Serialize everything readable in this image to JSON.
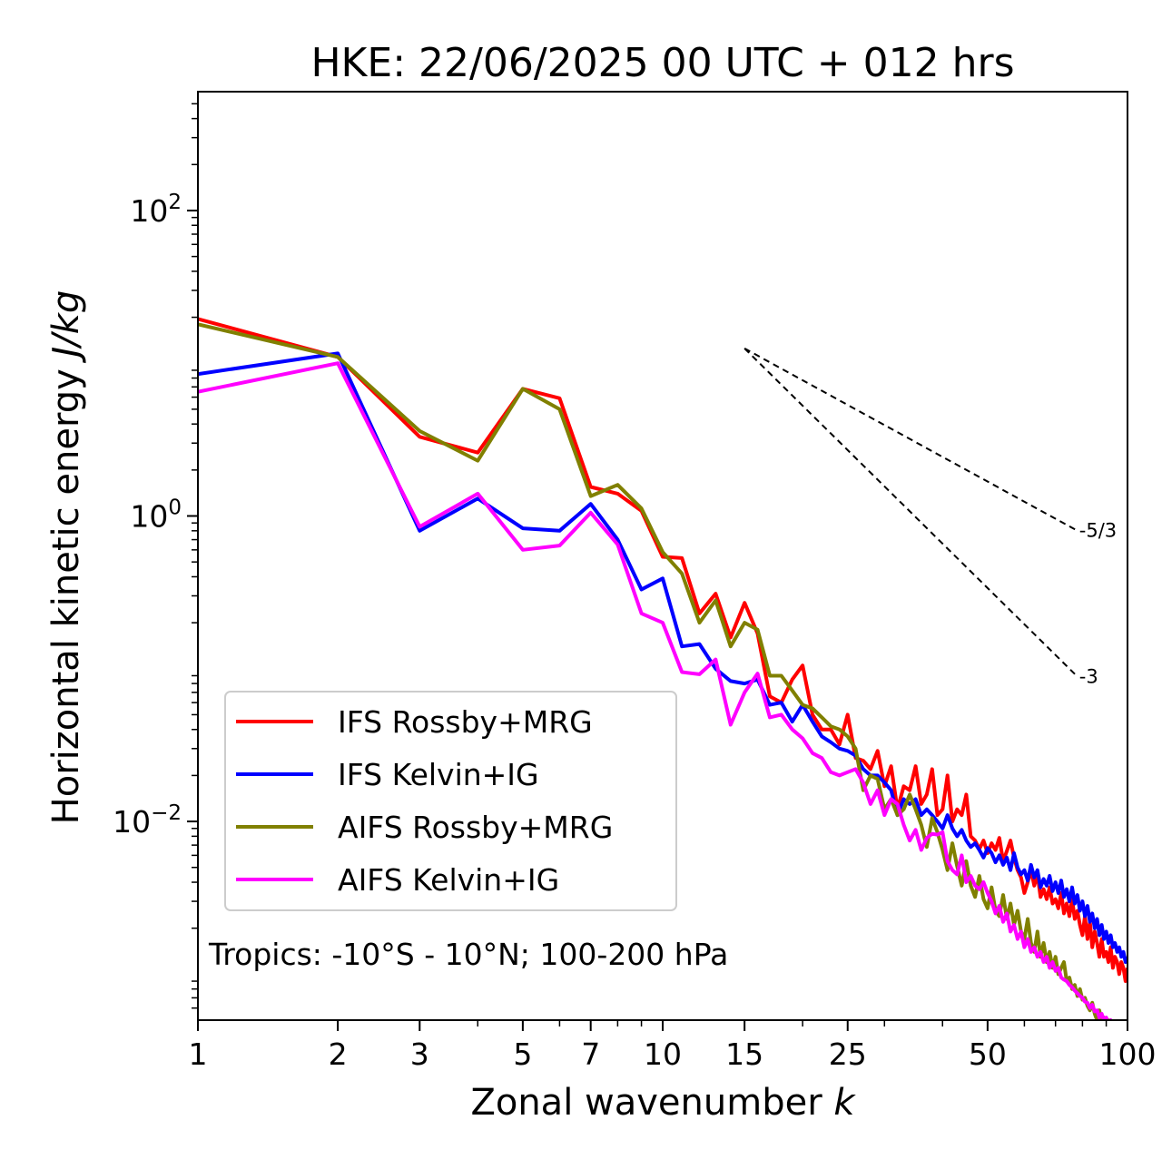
{
  "chart_data": {
    "type": "line",
    "title": "HKE: 22/06/2025 00 UTC + 012 hrs",
    "xlabel": "Zonal wavenumber k",
    "xlabel_main": "Zonal wavenumber ",
    "xlabel_var": "k",
    "ylabel_main": "Horizontal kinetic energy ",
    "ylabel_var": "J/kg",
    "xscale": "log",
    "yscale": "log",
    "xlim": [
      1,
      100
    ],
    "ylim": [
      0.0005,
      600
    ],
    "grid": false,
    "legend_position": "lower-left",
    "x_ticks": [
      {
        "value": 1,
        "label": "1"
      },
      {
        "value": 2,
        "label": "2"
      },
      {
        "value": 3,
        "label": "3"
      },
      {
        "value": 5,
        "label": "5"
      },
      {
        "value": 7,
        "label": "7"
      },
      {
        "value": 10,
        "label": "10"
      },
      {
        "value": 15,
        "label": "15"
      },
      {
        "value": 25,
        "label": "25"
      },
      {
        "value": 50,
        "label": "50"
      },
      {
        "value": 100,
        "label": "100"
      }
    ],
    "y_ticks": [
      {
        "value": 100,
        "base": "10",
        "exp": "2"
      },
      {
        "value": 1,
        "base": "10",
        "exp": "0"
      },
      {
        "value": 0.01,
        "base": "10",
        "exp": "−2"
      }
    ],
    "annotation": "Tropics: -10°S - 10°N; 100-200 hPa",
    "reference_slopes": [
      {
        "label": "-5/3",
        "slope": -1.6667,
        "x0": 15,
        "y0": 12.5,
        "x1": 78
      },
      {
        "label": "-3",
        "slope": -3,
        "x0": 15,
        "y0": 12.5,
        "x1": 78
      }
    ],
    "series": [
      {
        "name": "IFS Rossby+MRG",
        "color": "#ff0000",
        "x": [
          1,
          2,
          3,
          4,
          5,
          6,
          7,
          8,
          9,
          10,
          11,
          12,
          13,
          14,
          15,
          16,
          17,
          18,
          19,
          20,
          21,
          22,
          23,
          24,
          25,
          26,
          27,
          28,
          29,
          30,
          31,
          32,
          33,
          34,
          35,
          36,
          37,
          38,
          39,
          40,
          41,
          42,
          43,
          44,
          45,
          46,
          47,
          48,
          49,
          50,
          51,
          52,
          53,
          54,
          55,
          56,
          57,
          58,
          59,
          60,
          61,
          62,
          63,
          64,
          65,
          66,
          67,
          68,
          69,
          70,
          71,
          72,
          73,
          74,
          75,
          76,
          77,
          78,
          79,
          80,
          81,
          82,
          83,
          84,
          85,
          86,
          87,
          88,
          89,
          90,
          91,
          92,
          93,
          94,
          95,
          96,
          97,
          98,
          99,
          100
        ],
        "y": [
          19.5,
          11.0,
          3.3,
          2.6,
          6.8,
          5.9,
          1.55,
          1.4,
          1.08,
          0.54,
          0.53,
          0.23,
          0.31,
          0.16,
          0.27,
          0.17,
          0.066,
          0.06,
          0.085,
          0.105,
          0.05,
          0.04,
          0.04,
          0.032,
          0.05,
          0.026,
          0.025,
          0.022,
          0.029,
          0.017,
          0.023,
          0.012,
          0.017,
          0.016,
          0.023,
          0.013,
          0.015,
          0.022,
          0.011,
          0.012,
          0.02,
          0.01,
          0.012,
          0.011,
          0.015,
          0.008,
          0.0075,
          0.0066,
          0.0075,
          0.0062,
          0.0072,
          0.0065,
          0.0078,
          0.0055,
          0.0064,
          0.0075,
          0.0058,
          0.0048,
          0.0043,
          0.0034,
          0.004,
          0.0048,
          0.0038,
          0.0045,
          0.0032,
          0.0036,
          0.0031,
          0.0037,
          0.0029,
          0.0031,
          0.0027,
          0.0034,
          0.0025,
          0.0029,
          0.0024,
          0.0031,
          0.0023,
          0.0026,
          0.0021,
          0.0018,
          0.0024,
          0.0017,
          0.0022,
          0.0015,
          0.0019,
          0.0016,
          0.0013,
          0.0017,
          0.0013,
          0.0014,
          0.0012,
          0.0015,
          0.0011,
          0.0013,
          0.0012,
          0.001,
          0.0012,
          0.0011,
          0.0009,
          0.0011
        ]
      },
      {
        "name": "IFS Kelvin+IG",
        "color": "#0000ff",
        "x": [
          1,
          2,
          3,
          4,
          5,
          6,
          7,
          8,
          9,
          10,
          11,
          12,
          13,
          14,
          15,
          16,
          17,
          18,
          19,
          20,
          21,
          22,
          23,
          24,
          25,
          26,
          27,
          28,
          29,
          30,
          31,
          32,
          33,
          34,
          35,
          36,
          37,
          38,
          39,
          40,
          41,
          42,
          43,
          44,
          45,
          46,
          47,
          48,
          49,
          50,
          51,
          52,
          53,
          54,
          55,
          56,
          57,
          58,
          59,
          60,
          61,
          62,
          63,
          64,
          65,
          66,
          67,
          68,
          69,
          70,
          71,
          72,
          73,
          74,
          75,
          76,
          77,
          78,
          79,
          80,
          81,
          82,
          83,
          84,
          85,
          86,
          87,
          88,
          89,
          90,
          91,
          92,
          93,
          94,
          95,
          96,
          97,
          98,
          99,
          100
        ],
        "y": [
          8.5,
          11.6,
          0.8,
          1.3,
          0.83,
          0.8,
          1.2,
          0.7,
          0.33,
          0.39,
          0.14,
          0.145,
          0.1,
          0.083,
          0.08,
          0.085,
          0.058,
          0.06,
          0.045,
          0.058,
          0.045,
          0.036,
          0.033,
          0.03,
          0.029,
          0.027,
          0.022,
          0.02,
          0.02,
          0.018,
          0.016,
          0.011,
          0.014,
          0.013,
          0.014,
          0.011,
          0.012,
          0.011,
          0.01,
          0.009,
          0.011,
          0.009,
          0.008,
          0.0088,
          0.0075,
          0.0068,
          0.0072,
          0.0065,
          0.0058,
          0.0067,
          0.0062,
          0.0054,
          0.006,
          0.0052,
          0.0058,
          0.0048,
          0.0062,
          0.005,
          0.0045,
          0.0048,
          0.0041,
          0.0052,
          0.0043,
          0.0048,
          0.0037,
          0.0042,
          0.0038,
          0.0044,
          0.0035,
          0.004,
          0.0034,
          0.0041,
          0.0032,
          0.0036,
          0.003,
          0.0037,
          0.0029,
          0.0033,
          0.0026,
          0.003,
          0.0024,
          0.0028,
          0.0022,
          0.0025,
          0.002,
          0.0023,
          0.0018,
          0.0021,
          0.0017,
          0.0019,
          0.0016,
          0.0018,
          0.0015,
          0.0016,
          0.0014,
          0.0015,
          0.0013,
          0.0014,
          0.0012,
          0.0013
        ]
      },
      {
        "name": "AIFS Rossby+MRG",
        "color": "#808000",
        "x": [
          1,
          2,
          3,
          4,
          5,
          6,
          7,
          8,
          9,
          10,
          11,
          12,
          13,
          14,
          15,
          16,
          17,
          18,
          19,
          20,
          21,
          22,
          23,
          24,
          25,
          26,
          27,
          28,
          29,
          30,
          31,
          32,
          33,
          34,
          35,
          36,
          37,
          38,
          39,
          40,
          41,
          42,
          43,
          44,
          45,
          46,
          47,
          48,
          49,
          50,
          51,
          52,
          53,
          54,
          55,
          56,
          57,
          58,
          59,
          60,
          61,
          62,
          63,
          64,
          65,
          66,
          67,
          68,
          69,
          70,
          71,
          72,
          73,
          74,
          75,
          76,
          77,
          78,
          79,
          80,
          81,
          82,
          83,
          84,
          85,
          86,
          87,
          88,
          89,
          90,
          91,
          92,
          93,
          94,
          95,
          96,
          97,
          98,
          99,
          100
        ],
        "y": [
          18.0,
          11.0,
          3.6,
          2.3,
          6.8,
          5.0,
          1.35,
          1.6,
          1.12,
          0.58,
          0.42,
          0.2,
          0.28,
          0.14,
          0.2,
          0.18,
          0.09,
          0.09,
          0.072,
          0.058,
          0.055,
          0.048,
          0.042,
          0.04,
          0.036,
          0.03,
          0.016,
          0.02,
          0.019,
          0.012,
          0.014,
          0.011,
          0.012,
          0.015,
          0.012,
          0.0095,
          0.0068,
          0.0105,
          0.0085,
          0.0065,
          0.0048,
          0.0072,
          0.0051,
          0.0038,
          0.0055,
          0.0038,
          0.0032,
          0.0044,
          0.0031,
          0.0027,
          0.0037,
          0.0026,
          0.0024,
          0.0033,
          0.0023,
          0.0029,
          0.0021,
          0.0026,
          0.0019,
          0.0017,
          0.0023,
          0.0016,
          0.0014,
          0.0019,
          0.0013,
          0.0016,
          0.0012,
          0.0014,
          0.0011,
          0.0013,
          0.001,
          0.0011,
          0.0012,
          0.0009,
          0.00095,
          0.0008,
          0.00085,
          0.00072,
          0.0008,
          0.00068,
          0.0007,
          0.00062,
          0.00058,
          0.00065,
          0.00055,
          0.0005,
          0.00058,
          0.00048,
          0.00052,
          0.00045,
          0.0005,
          0.00042,
          0.00046,
          0.0004,
          0.00044,
          0.00038,
          0.0004,
          0.00036,
          0.00038,
          0.00034
        ]
      },
      {
        "name": "AIFS Kelvin+IG",
        "color": "#ff00ff",
        "x": [
          1,
          2,
          3,
          4,
          5,
          6,
          7,
          8,
          9,
          10,
          11,
          12,
          13,
          14,
          15,
          16,
          17,
          18,
          19,
          20,
          21,
          22,
          23,
          24,
          25,
          26,
          27,
          28,
          29,
          30,
          31,
          32,
          33,
          34,
          35,
          36,
          37,
          38,
          39,
          40,
          41,
          42,
          43,
          44,
          45,
          46,
          47,
          48,
          49,
          50,
          51,
          52,
          53,
          54,
          55,
          56,
          57,
          58,
          59,
          60,
          61,
          62,
          63,
          64,
          65,
          66,
          67,
          68,
          69,
          70,
          71,
          72,
          73,
          74,
          75,
          76,
          77,
          78,
          79,
          80,
          81,
          82,
          83,
          84,
          85,
          86,
          87,
          88,
          89,
          90,
          91,
          92,
          93,
          94,
          95,
          96,
          97,
          98,
          99,
          100
        ],
        "y": [
          6.5,
          10.0,
          0.85,
          1.4,
          0.6,
          0.64,
          1.05,
          0.65,
          0.23,
          0.2,
          0.095,
          0.092,
          0.115,
          0.043,
          0.07,
          0.093,
          0.048,
          0.05,
          0.04,
          0.035,
          0.028,
          0.026,
          0.021,
          0.02,
          0.021,
          0.022,
          0.018,
          0.013,
          0.016,
          0.011,
          0.014,
          0.013,
          0.0095,
          0.0075,
          0.0088,
          0.0065,
          0.0078,
          0.0083,
          0.0082,
          0.0085,
          0.0055,
          0.0048,
          0.0045,
          0.006,
          0.004,
          0.0044,
          0.0038,
          0.0036,
          0.004,
          0.0034,
          0.003,
          0.0025,
          0.0028,
          0.0022,
          0.0025,
          0.0019,
          0.0021,
          0.0017,
          0.0019,
          0.0015,
          0.0017,
          0.0014,
          0.0015,
          0.0013,
          0.0014,
          0.0012,
          0.0013,
          0.0011,
          0.0012,
          0.00105,
          0.0011,
          0.00095,
          0.00092,
          0.0009,
          0.00085,
          0.00082,
          0.00078,
          0.00075,
          0.00072,
          0.0007,
          0.00066,
          0.00065,
          0.0006,
          0.00063,
          0.00057,
          0.00058,
          0.00052,
          0.00055,
          0.0005,
          0.00052,
          0.00047,
          0.0005,
          0.00045,
          0.00047,
          0.00043,
          0.00045,
          0.00041,
          0.00043,
          0.0004,
          0.00041
        ]
      }
    ]
  }
}
